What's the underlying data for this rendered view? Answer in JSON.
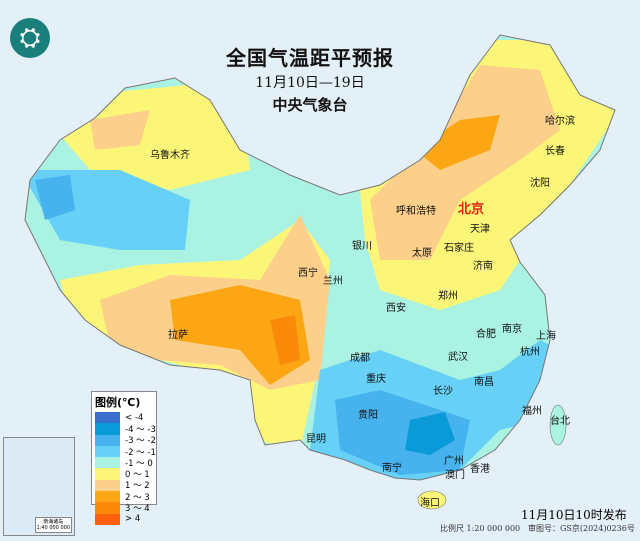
{
  "header": {
    "title": "全国气温距平预报",
    "date_range": "11月10日—19日",
    "issuer": "中央气象台",
    "logo_icon": "cma-logo-icon"
  },
  "legend": {
    "title": "图例(℃)",
    "items": [
      {
        "label": "< -4",
        "color": "#3a6fcf"
      },
      {
        "label": "-4 ～ -3",
        "color": "#0a9ad8"
      },
      {
        "label": "-3 ～ -2",
        "color": "#46b2ee"
      },
      {
        "label": "-2 ～ -1",
        "color": "#66d0f6"
      },
      {
        "label": "-1 ～ 0",
        "color": "#aaf2e2"
      },
      {
        "label": "0 ～ 1",
        "color": "#fcf678"
      },
      {
        "label": "1 ～ 2",
        "color": "#fcd08a"
      },
      {
        "label": "2 ～ 3",
        "color": "#fca614"
      },
      {
        "label": "3 ～ 4",
        "color": "#fc8a0a"
      },
      {
        "label": "> 4",
        "color": "#fc600a"
      }
    ]
  },
  "cities": [
    {
      "name": "乌鲁木齐"
    },
    {
      "name": "哈尔滨"
    },
    {
      "name": "长春"
    },
    {
      "name": "沈阳"
    },
    {
      "name": "北京"
    },
    {
      "name": "天津"
    },
    {
      "name": "呼和浩特"
    },
    {
      "name": "太原"
    },
    {
      "name": "石家庄"
    },
    {
      "name": "济南"
    },
    {
      "name": "银川"
    },
    {
      "name": "西宁"
    },
    {
      "name": "兰州"
    },
    {
      "name": "西安"
    },
    {
      "name": "郑州"
    },
    {
      "name": "合肥"
    },
    {
      "name": "南京"
    },
    {
      "name": "上海"
    },
    {
      "name": "武汉"
    },
    {
      "name": "杭州"
    },
    {
      "name": "拉萨"
    },
    {
      "name": "成都"
    },
    {
      "name": "重庆"
    },
    {
      "name": "长沙"
    },
    {
      "name": "南昌"
    },
    {
      "name": "贵阳"
    },
    {
      "name": "福州"
    },
    {
      "name": "台北"
    },
    {
      "name": "昆明"
    },
    {
      "name": "南宁"
    },
    {
      "name": "广州"
    },
    {
      "name": "澳门"
    },
    {
      "name": "香港"
    },
    {
      "name": "海口"
    }
  ],
  "inset": {
    "caption": "南海诸岛",
    "scale": "1:40 000 000"
  },
  "footer": {
    "published": "11月10日10时发布",
    "scale": "比例尺 1:20 000 000",
    "review_no": "审图号：GS京(2024)0236号"
  }
}
